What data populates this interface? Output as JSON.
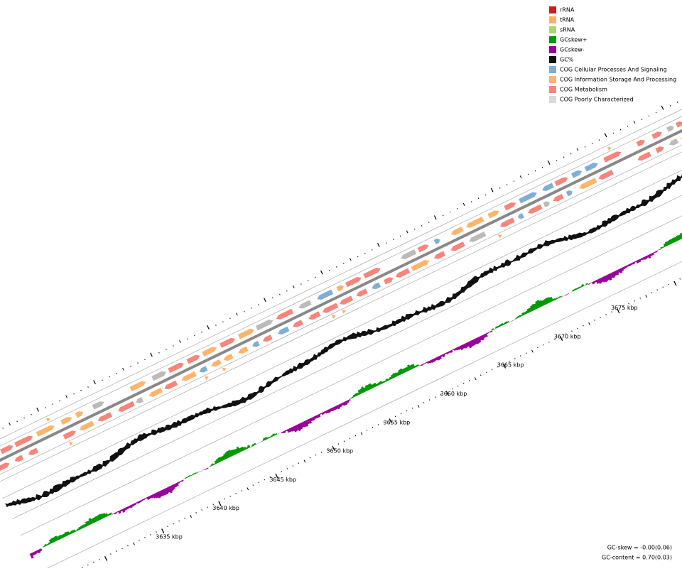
{
  "legend": {
    "items": [
      {
        "label": "rRNA",
        "color": "#d7191c"
      },
      {
        "label": "tRNA",
        "color": "#fdae61"
      },
      {
        "label": "sRNA",
        "color": "#a6d96a"
      },
      {
        "label": "GCskew+",
        "color": "#009900"
      },
      {
        "label": "GCskew-",
        "color": "#990099"
      },
      {
        "label": "GC%",
        "color": "#111111"
      },
      {
        "label": "COG Cellular Processes And Signaling",
        "color": "#7faed6"
      },
      {
        "label": "COG Information Storage And Processing",
        "color": "#fdb46b"
      },
      {
        "label": "COG Metabolism",
        "color": "#f7857a"
      },
      {
        "label": "COG Poorly Characterized",
        "color": "#d9d9d9"
      }
    ]
  },
  "map": {
    "position_labels": [
      "3635 kbp",
      "3640 kbp",
      "3645 kbp",
      "3650 kbp",
      "3655 kbp",
      "3660 kbp",
      "3665 kbp",
      "3670 kbp",
      "3675 kbp"
    ]
  },
  "stats": {
    "gc_skew": "GC-skew = -0.00(0.06)",
    "gc_content": "GC-content = 0.70(0.03)"
  }
}
